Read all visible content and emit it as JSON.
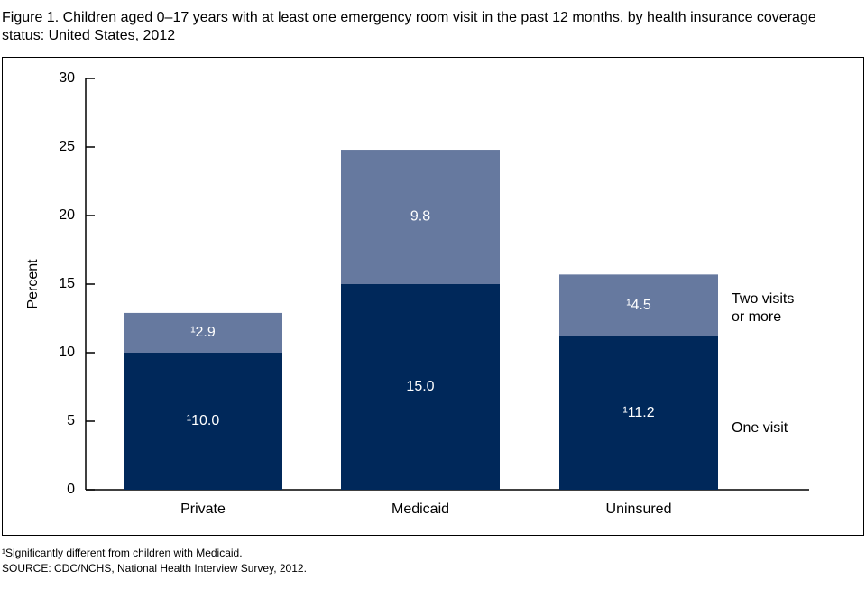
{
  "chart_data": {
    "type": "stacked_bar",
    "title": "Figure 1. Children aged 0–17 years with at least one emergency room visit in the past 12 months, by health insurance coverage status: United States, 2012",
    "ylabel": "Percent",
    "categories": [
      "Private",
      "Medicaid",
      "Uninsured"
    ],
    "series": [
      {
        "name": "One visit",
        "color": "#00285a",
        "values": [
          10.0,
          15.0,
          11.2
        ],
        "value_labels": [
          "¹10.0",
          "15.0",
          "¹11.2"
        ]
      },
      {
        "name": "Two visits or more",
        "color": "#66799f",
        "values": [
          2.9,
          9.8,
          4.5
        ],
        "value_labels": [
          "¹2.9",
          "9.8",
          "¹4.5"
        ]
      }
    ],
    "ylim": [
      0,
      30
    ],
    "yticks": [
      0,
      5,
      10,
      15,
      20,
      25,
      30
    ],
    "footnote": "¹Significantly different from children with Medicaid.",
    "source": "SOURCE: CDC/NCHS, National Health Interview Survey, 2012."
  }
}
